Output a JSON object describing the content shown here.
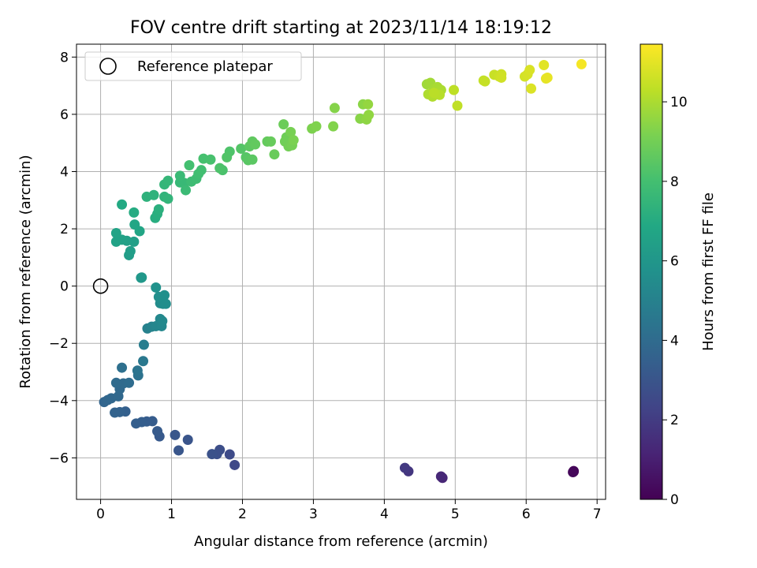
{
  "chart_data": {
    "type": "scatter",
    "title": "FOV centre drift starting at 2023/11/14 18:19:12",
    "xlabel": "Angular distance from reference (arcmin)",
    "ylabel": "Rotation from reference (arcmin)",
    "xlim": [
      -0.34,
      7.12
    ],
    "ylim": [
      -7.45,
      8.45
    ],
    "xticks": [
      0,
      1,
      2,
      3,
      4,
      5,
      6,
      7
    ],
    "yticks": [
      -6,
      -4,
      -2,
      0,
      2,
      4,
      6,
      8
    ],
    "grid": true,
    "legend": {
      "placement": "top-left",
      "entries": [
        "Reference platepar"
      ]
    },
    "reference_point": {
      "x": 0,
      "y": 0,
      "marker": "hollow-circle"
    },
    "colorbar": {
      "label": "Hours from first FF file",
      "colormap": "viridis",
      "range": [
        0,
        11.45
      ],
      "ticks": [
        0,
        2,
        4,
        6,
        8,
        10
      ]
    },
    "points": [
      {
        "x": 6.67,
        "y": -6.48,
        "h": 0.0
      },
      {
        "x": 6.67,
        "y": -6.46,
        "h": 0.1
      },
      {
        "x": 6.66,
        "y": -6.5,
        "h": 0.2
      },
      {
        "x": 4.82,
        "y": -6.7,
        "h": 1.2
      },
      {
        "x": 4.8,
        "y": -6.65,
        "h": 1.3
      },
      {
        "x": 4.34,
        "y": -6.47,
        "h": 1.8
      },
      {
        "x": 4.29,
        "y": -6.35,
        "h": 1.9
      },
      {
        "x": 1.89,
        "y": -6.25,
        "h": 2.5
      },
      {
        "x": 1.82,
        "y": -5.88,
        "h": 2.6
      },
      {
        "x": 1.68,
        "y": -5.72,
        "h": 2.7
      },
      {
        "x": 1.64,
        "y": -5.87,
        "h": 2.8
      },
      {
        "x": 1.57,
        "y": -5.87,
        "h": 2.9
      },
      {
        "x": 1.23,
        "y": -5.37,
        "h": 3.0
      },
      {
        "x": 1.1,
        "y": -5.74,
        "h": 3.05
      },
      {
        "x": 1.05,
        "y": -5.2,
        "h": 3.1
      },
      {
        "x": 0.83,
        "y": -5.25,
        "h": 3.2
      },
      {
        "x": 0.8,
        "y": -5.07,
        "h": 3.25
      },
      {
        "x": 0.73,
        "y": -4.72,
        "h": 3.3
      },
      {
        "x": 0.65,
        "y": -4.73,
        "h": 3.35
      },
      {
        "x": 0.58,
        "y": -4.75,
        "h": 3.4
      },
      {
        "x": 0.5,
        "y": -4.8,
        "h": 3.45
      },
      {
        "x": 0.35,
        "y": -4.38,
        "h": 3.5
      },
      {
        "x": 0.27,
        "y": -4.4,
        "h": 3.55
      },
      {
        "x": 0.2,
        "y": -4.42,
        "h": 3.6
      },
      {
        "x": 0.05,
        "y": -4.05,
        "h": 3.7
      },
      {
        "x": 0.1,
        "y": -3.98,
        "h": 3.75
      },
      {
        "x": 0.15,
        "y": -3.92,
        "h": 3.8
      },
      {
        "x": 0.25,
        "y": -3.85,
        "h": 3.85
      },
      {
        "x": 0.27,
        "y": -3.6,
        "h": 3.9
      },
      {
        "x": 0.32,
        "y": -3.4,
        "h": 3.95
      },
      {
        "x": 0.22,
        "y": -3.38,
        "h": 4.0
      },
      {
        "x": 0.4,
        "y": -3.38,
        "h": 4.05
      },
      {
        "x": 0.3,
        "y": -2.85,
        "h": 4.2
      },
      {
        "x": 0.53,
        "y": -3.12,
        "h": 4.3
      },
      {
        "x": 0.52,
        "y": -2.95,
        "h": 4.4
      },
      {
        "x": 0.6,
        "y": -2.62,
        "h": 4.6
      },
      {
        "x": 0.61,
        "y": -2.05,
        "h": 4.8
      },
      {
        "x": 0.66,
        "y": -1.48,
        "h": 5.0
      },
      {
        "x": 0.72,
        "y": -1.42,
        "h": 5.1
      },
      {
        "x": 0.78,
        "y": -1.4,
        "h": 5.2
      },
      {
        "x": 0.86,
        "y": -1.4,
        "h": 5.25
      },
      {
        "x": 0.84,
        "y": -1.15,
        "h": 5.3
      },
      {
        "x": 0.87,
        "y": -1.22,
        "h": 5.35
      },
      {
        "x": 0.84,
        "y": -0.6,
        "h": 5.5
      },
      {
        "x": 0.88,
        "y": -0.62,
        "h": 5.55
      },
      {
        "x": 0.92,
        "y": -0.62,
        "h": 5.6
      },
      {
        "x": 0.82,
        "y": -0.38,
        "h": 5.65
      },
      {
        "x": 0.9,
        "y": -0.32,
        "h": 5.7
      },
      {
        "x": 0.78,
        "y": -0.05,
        "h": 5.75
      },
      {
        "x": 0.57,
        "y": 0.29,
        "h": 6.0
      },
      {
        "x": 0.58,
        "y": 0.3,
        "h": 6.05
      },
      {
        "x": 0.4,
        "y": 1.08,
        "h": 6.3
      },
      {
        "x": 0.42,
        "y": 1.22,
        "h": 6.35
      },
      {
        "x": 0.47,
        "y": 1.55,
        "h": 6.4
      },
      {
        "x": 0.37,
        "y": 1.58,
        "h": 6.45
      },
      {
        "x": 0.3,
        "y": 1.62,
        "h": 6.5
      },
      {
        "x": 0.22,
        "y": 1.55,
        "h": 6.55
      },
      {
        "x": 0.22,
        "y": 1.85,
        "h": 6.6
      },
      {
        "x": 0.55,
        "y": 1.92,
        "h": 6.7
      },
      {
        "x": 0.48,
        "y": 2.15,
        "h": 6.75
      },
      {
        "x": 0.3,
        "y": 2.85,
        "h": 6.9
      },
      {
        "x": 0.47,
        "y": 2.57,
        "h": 7.0
      },
      {
        "x": 0.77,
        "y": 2.38,
        "h": 7.1
      },
      {
        "x": 0.8,
        "y": 2.52,
        "h": 7.15
      },
      {
        "x": 0.82,
        "y": 2.68,
        "h": 7.2
      },
      {
        "x": 0.65,
        "y": 3.12,
        "h": 7.3
      },
      {
        "x": 0.75,
        "y": 3.18,
        "h": 7.35
      },
      {
        "x": 0.9,
        "y": 3.12,
        "h": 7.4
      },
      {
        "x": 0.95,
        "y": 3.05,
        "h": 7.45
      },
      {
        "x": 0.9,
        "y": 3.55,
        "h": 7.5
      },
      {
        "x": 0.95,
        "y": 3.68,
        "h": 7.55
      },
      {
        "x": 1.12,
        "y": 3.62,
        "h": 7.6
      },
      {
        "x": 1.18,
        "y": 3.6,
        "h": 7.65
      },
      {
        "x": 1.12,
        "y": 3.85,
        "h": 7.7
      },
      {
        "x": 1.2,
        "y": 3.35,
        "h": 7.75
      },
      {
        "x": 1.28,
        "y": 3.65,
        "h": 7.8
      },
      {
        "x": 1.35,
        "y": 3.75,
        "h": 7.85
      },
      {
        "x": 1.38,
        "y": 3.92,
        "h": 7.9
      },
      {
        "x": 1.42,
        "y": 4.05,
        "h": 7.95
      },
      {
        "x": 1.25,
        "y": 4.22,
        "h": 8.0
      },
      {
        "x": 1.45,
        "y": 4.45,
        "h": 8.05
      },
      {
        "x": 1.55,
        "y": 4.42,
        "h": 8.1
      },
      {
        "x": 1.72,
        "y": 4.05,
        "h": 8.15
      },
      {
        "x": 1.68,
        "y": 4.12,
        "h": 8.2
      },
      {
        "x": 1.82,
        "y": 4.7,
        "h": 8.25
      },
      {
        "x": 1.78,
        "y": 4.5,
        "h": 8.3
      },
      {
        "x": 1.98,
        "y": 4.8,
        "h": 8.35
      },
      {
        "x": 2.05,
        "y": 4.5,
        "h": 8.4
      },
      {
        "x": 2.08,
        "y": 4.4,
        "h": 8.45
      },
      {
        "x": 2.14,
        "y": 4.42,
        "h": 8.5
      },
      {
        "x": 2.1,
        "y": 4.88,
        "h": 8.55
      },
      {
        "x": 2.14,
        "y": 5.05,
        "h": 8.6
      },
      {
        "x": 2.18,
        "y": 4.95,
        "h": 8.65
      },
      {
        "x": 2.35,
        "y": 5.05,
        "h": 8.7
      },
      {
        "x": 2.4,
        "y": 5.05,
        "h": 8.75
      },
      {
        "x": 2.45,
        "y": 4.6,
        "h": 8.8
      },
      {
        "x": 2.58,
        "y": 5.65,
        "h": 8.85
      },
      {
        "x": 2.62,
        "y": 5.2,
        "h": 8.9
      },
      {
        "x": 2.6,
        "y": 5.05,
        "h": 8.95
      },
      {
        "x": 2.65,
        "y": 4.88,
        "h": 9.0
      },
      {
        "x": 2.7,
        "y": 4.92,
        "h": 9.05
      },
      {
        "x": 2.68,
        "y": 5.38,
        "h": 9.1
      },
      {
        "x": 2.72,
        "y": 5.1,
        "h": 9.15
      },
      {
        "x": 2.98,
        "y": 5.5,
        "h": 9.2
      },
      {
        "x": 3.04,
        "y": 5.58,
        "h": 9.25
      },
      {
        "x": 3.28,
        "y": 5.58,
        "h": 9.3
      },
      {
        "x": 3.3,
        "y": 6.22,
        "h": 9.35
      },
      {
        "x": 3.66,
        "y": 5.85,
        "h": 9.4
      },
      {
        "x": 3.7,
        "y": 6.35,
        "h": 9.45
      },
      {
        "x": 3.75,
        "y": 5.82,
        "h": 9.5
      },
      {
        "x": 3.78,
        "y": 5.98,
        "h": 9.55
      },
      {
        "x": 3.77,
        "y": 6.35,
        "h": 9.6
      },
      {
        "x": 4.6,
        "y": 7.05,
        "h": 9.8
      },
      {
        "x": 4.65,
        "y": 7.1,
        "h": 9.85
      },
      {
        "x": 4.7,
        "y": 6.88,
        "h": 9.9
      },
      {
        "x": 4.75,
        "y": 6.95,
        "h": 9.95
      },
      {
        "x": 4.8,
        "y": 6.85,
        "h": 10.0
      },
      {
        "x": 4.62,
        "y": 6.7,
        "h": 10.05
      },
      {
        "x": 4.68,
        "y": 6.62,
        "h": 10.1
      },
      {
        "x": 4.72,
        "y": 6.72,
        "h": 10.15
      },
      {
        "x": 4.78,
        "y": 6.68,
        "h": 10.2
      },
      {
        "x": 4.7,
        "y": 6.75,
        "h": 10.25
      },
      {
        "x": 4.98,
        "y": 6.85,
        "h": 10.3
      },
      {
        "x": 5.03,
        "y": 6.3,
        "h": 10.35
      },
      {
        "x": 5.4,
        "y": 7.18,
        "h": 10.4
      },
      {
        "x": 5.42,
        "y": 7.15,
        "h": 10.45
      },
      {
        "x": 5.55,
        "y": 7.38,
        "h": 10.5
      },
      {
        "x": 5.62,
        "y": 7.32,
        "h": 10.55
      },
      {
        "x": 5.65,
        "y": 7.4,
        "h": 10.6
      },
      {
        "x": 5.65,
        "y": 7.28,
        "h": 10.65
      },
      {
        "x": 5.98,
        "y": 7.32,
        "h": 10.7
      },
      {
        "x": 6.02,
        "y": 7.4,
        "h": 10.75
      },
      {
        "x": 6.05,
        "y": 7.55,
        "h": 10.8
      },
      {
        "x": 6.07,
        "y": 6.9,
        "h": 10.85
      },
      {
        "x": 6.25,
        "y": 7.72,
        "h": 10.95
      },
      {
        "x": 6.28,
        "y": 7.25,
        "h": 11.0
      },
      {
        "x": 6.3,
        "y": 7.28,
        "h": 11.05
      },
      {
        "x": 6.78,
        "y": 7.75,
        "h": 11.3
      }
    ]
  }
}
